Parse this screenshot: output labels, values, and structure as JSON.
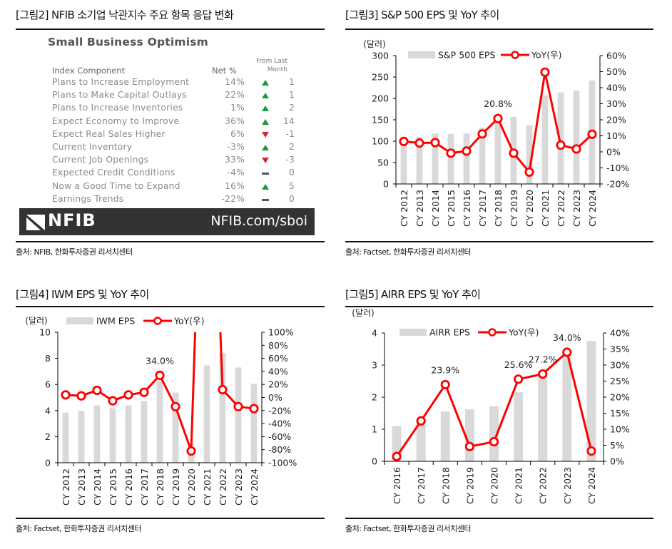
{
  "figure2": {
    "title": "[그림2] NFIB 소기업 낙관지수 주요 항목 응답 변화",
    "table_title": "Small Business Optimism",
    "header_component": "Index Component",
    "header_net": "Net %",
    "header_change_line1": "From Last",
    "header_change_line2": "Month",
    "rows": [
      {
        "label": "Plans to Increase Employment",
        "net": "14%",
        "direction": "up",
        "change": "1"
      },
      {
        "label": "Plans to Make Capital Outlays",
        "net": "22%",
        "direction": "up",
        "change": "1"
      },
      {
        "label": "Plans to Increase Inventories",
        "net": "1%",
        "direction": "up",
        "change": "2"
      },
      {
        "label": "Expect Economy to Improve",
        "net": "36%",
        "direction": "up",
        "change": "14"
      },
      {
        "label": "Expect Real Sales Higher",
        "net": "6%",
        "direction": "down",
        "change": "-1"
      },
      {
        "label": "Current Inventory",
        "net": "-3%",
        "direction": "up",
        "change": "2"
      },
      {
        "label": "Current Job Openings",
        "net": "33%",
        "direction": "down",
        "change": "-3"
      },
      {
        "label": "Expected Credit Conditions",
        "net": "-4%",
        "direction": "flat",
        "change": "0"
      },
      {
        "label": "Now a Good Time to Expand",
        "net": "16%",
        "direction": "up",
        "change": "5"
      },
      {
        "label": "Earnings Trends",
        "net": "-22%",
        "direction": "flat",
        "change": "0"
      }
    ],
    "banner_logo": "NFIB",
    "banner_url": "NFIB.com/sboi",
    "source": "출처: NFIB, 한화투자증권 리서치센터",
    "colors": {
      "up": "#1a9a3c",
      "down": "#d3262f",
      "flat": "#555555",
      "banner": "#333333"
    }
  },
  "figure3": {
    "title": "[그림3] S&P 500 EPS 및 YoY 추이",
    "source": "출처: Factset, 한화투자증권 리서치센터"
  },
  "figure4": {
    "title": "[그림4] IWM EPS 및 YoY 추이",
    "source": "출처: Factset, 한화투자증권 리서치센터"
  },
  "figure5": {
    "title": "[그림5] AIRR EPS 및 YoY 추이",
    "source": "출처: Factset, 한화투자증권 리서치센터"
  },
  "chart_data": [
    {
      "id": "sp500",
      "type": "bar+line",
      "title": "S&P 500 EPS 및 YoY 추이",
      "ylabel": "(달러)",
      "y2label": "",
      "categories": [
        "CY 2012",
        "CY 2013",
        "CY 2014",
        "CY 2015",
        "CY 2016",
        "CY 2017",
        "CY 2018",
        "CY 2019",
        "CY 2020",
        "CY 2021",
        "CY 2022",
        "CY 2023",
        "CY 2024"
      ],
      "series": [
        {
          "name": "S&P 500 EPS",
          "axis": "left",
          "kind": "bar",
          "color": "#d9d9d9",
          "values": [
            103,
            110,
            118,
            117,
            118,
            132,
            160,
            157,
            137,
            206,
            214,
            218,
            242
          ]
        },
        {
          "name": "YoY(우)",
          "axis": "right",
          "kind": "line",
          "color": "#ff0000",
          "values": [
            6.5,
            5.5,
            5.8,
            -0.8,
            0.5,
            11.2,
            20.8,
            -0.8,
            -12.6,
            49.7,
            4.2,
            1.8,
            11.0
          ]
        }
      ],
      "annotations": [
        {
          "category": "CY 2018",
          "text": "20.8%"
        }
      ],
      "ylim": [
        0,
        300
      ],
      "yticks": [
        "0",
        "50",
        "100",
        "150",
        "200",
        "250",
        "300"
      ],
      "y2lim": [
        -20,
        60
      ],
      "y2ticks": [
        "-20%",
        "-10%",
        "0%",
        "10%",
        "20%",
        "30%",
        "40%",
        "50%",
        "60%"
      ],
      "legend": "top",
      "grid": false
    },
    {
      "id": "iwm",
      "type": "bar+line",
      "title": "IWM EPS 및 YoY 추이",
      "ylabel": "(달러)",
      "categories": [
        "CY 2012",
        "CY 2013",
        "CY 2014",
        "CY 2015",
        "CY 2016",
        "CY 2017",
        "CY 2018",
        "CY 2019",
        "CY 2020",
        "CY 2021",
        "CY 2022",
        "CY 2023",
        "CY 2024"
      ],
      "series": [
        {
          "name": "IWM EPS",
          "axis": "left",
          "kind": "bar",
          "color": "#d9d9d9",
          "values": [
            3.85,
            3.97,
            4.4,
            4.18,
            4.4,
            4.73,
            6.3,
            5.38,
            1.0,
            7.45,
            8.4,
            7.3,
            6.05
          ]
        },
        {
          "name": "YoY(우)",
          "axis": "right",
          "kind": "line",
          "color": "#ff0000",
          "values": [
            4,
            2.5,
            11,
            -5,
            4,
            8,
            34.0,
            -14,
            -82,
            640,
            12,
            -14,
            -17
          ]
        }
      ],
      "annotations": [
        {
          "category": "CY 2018",
          "text": "34.0%"
        }
      ],
      "ylim": [
        0,
        10
      ],
      "yticks": [
        "0",
        "2",
        "4",
        "6",
        "8",
        "10"
      ],
      "y2lim": [
        -100,
        100
      ],
      "y2ticks": [
        "-100%",
        "-80%",
        "-60%",
        "-40%",
        "-20%",
        "0%",
        "20%",
        "40%",
        "60%",
        "80%",
        "100%"
      ],
      "legend": "top",
      "grid": false
    },
    {
      "id": "airr",
      "type": "bar+line",
      "title": "AIRR EPS 및 YoY 추이",
      "ylabel": "(달러)",
      "categories": [
        "CY 2016",
        "CY 2017",
        "CY 2018",
        "CY 2019",
        "CY 2020",
        "CY 2021",
        "CY 2022",
        "CY 2023",
        "CY 2024"
      ],
      "series": [
        {
          "name": "AIRR EPS",
          "axis": "left",
          "kind": "bar",
          "color": "#d9d9d9",
          "values": [
            1.1,
            1.25,
            1.55,
            1.62,
            1.71,
            2.15,
            2.7,
            3.4,
            3.75
          ]
        },
        {
          "name": "YoY(우)",
          "axis": "right",
          "kind": "line",
          "color": "#ff0000",
          "values": [
            1.5,
            12.6,
            23.9,
            4.6,
            6.1,
            25.6,
            27.2,
            34.0,
            3.2
          ]
        }
      ],
      "annotations": [
        {
          "category": "CY 2018",
          "text": "23.9%"
        },
        {
          "category": "CY 2021",
          "text": "25.6%"
        },
        {
          "category": "CY 2022",
          "text": "27.2%"
        },
        {
          "category": "CY 2023",
          "text": "34.0%"
        }
      ],
      "ylim": [
        0,
        4
      ],
      "yticks": [
        "0",
        "1",
        "2",
        "3",
        "4"
      ],
      "y2lim": [
        0,
        40
      ],
      "y2ticks": [
        "0%",
        "5%",
        "10%",
        "15%",
        "20%",
        "25%",
        "30%",
        "35%",
        "40%"
      ],
      "legend": "top",
      "grid": false
    }
  ]
}
